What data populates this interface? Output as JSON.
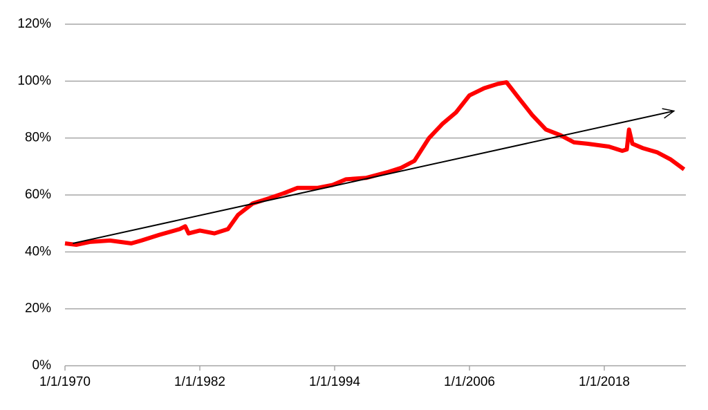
{
  "chart_data": {
    "type": "line",
    "x": [
      1970,
      1971,
      1972.2,
      1974,
      1975.9,
      1976.8,
      1978.4,
      1980.2,
      1980.7,
      1981,
      1982,
      1983.3,
      1984.5,
      1985.4,
      1986.7,
      1987.9,
      1989.4,
      1990.7,
      1992.5,
      1993.8,
      1995,
      1996.8,
      1998.7,
      1999.9,
      2001.1,
      2002.4,
      2003.6,
      2004.8,
      2006,
      2007.3,
      2008.5,
      2009.3,
      2010.4,
      2011.6,
      2012.8,
      2014.1,
      2015.3,
      2016.5,
      2018.4,
      2019.6,
      2020,
      2020.2,
      2020.5,
      2021.4,
      2022.7,
      2023.9,
      2025.1
    ],
    "series": [
      {
        "color": "#ff0000",
        "values": [
          43,
          42.5,
          43.5,
          44,
          43,
          44,
          46,
          48,
          49,
          46.5,
          47.5,
          46.5,
          48,
          53,
          57,
          58.5,
          60.5,
          62.5,
          62.5,
          63.5,
          65.5,
          66,
          68,
          69.5,
          72,
          80,
          85,
          89,
          95,
          97.5,
          99,
          99.6,
          94,
          88,
          83,
          81,
          78.5,
          78,
          77,
          75.5,
          76,
          83,
          78,
          76.5,
          75,
          72.5,
          69
        ]
      }
    ],
    "trend": {
      "x": [
        1970.7,
        2024.2
      ],
      "values": [
        43,
        89.5
      ],
      "color": "#000000"
    },
    "xlim": [
      1970,
      2025.26
    ],
    "xticks": [
      {
        "value": 1970,
        "label": "1/1/1970"
      },
      {
        "value": 1982,
        "label": "1/1/1982"
      },
      {
        "value": 1994,
        "label": "1/1/1994"
      },
      {
        "value": 2006,
        "label": "1/1/2006"
      },
      {
        "value": 2018,
        "label": "1/1/2018"
      }
    ],
    "ylim": [
      0,
      120
    ],
    "yticks": [
      {
        "value": 0,
        "label": "0%"
      },
      {
        "value": 20,
        "label": "20%"
      },
      {
        "value": 40,
        "label": "40%"
      },
      {
        "value": 60,
        "label": "60%"
      },
      {
        "value": 80,
        "label": "80%"
      },
      {
        "value": 100,
        "label": "100%"
      },
      {
        "value": 120,
        "label": "120%"
      }
    ],
    "grid": true
  }
}
